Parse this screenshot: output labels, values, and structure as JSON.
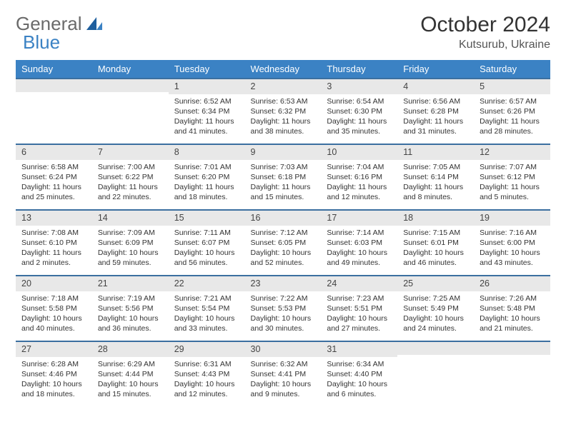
{
  "brand": {
    "general": "General",
    "blue": "Blue"
  },
  "title": "October 2024",
  "location": "Kutsurub, Ukraine",
  "styling": {
    "header_bg": "#3b82c4",
    "header_text": "#ffffff",
    "daynum_bg": "#e8e8e8",
    "daynum_border": "#3b6fa0",
    "body_text": "#333333",
    "page_bg": "#ffffff",
    "title_fontsize": 30,
    "location_fontsize": 16,
    "dayheader_fontsize": 13,
    "cell_fontsize": 10.5
  },
  "day_headers": [
    "Sunday",
    "Monday",
    "Tuesday",
    "Wednesday",
    "Thursday",
    "Friday",
    "Saturday"
  ],
  "weeks": [
    [
      null,
      null,
      {
        "n": "1",
        "sr": "Sunrise: 6:52 AM",
        "ss": "Sunset: 6:34 PM",
        "dl": "Daylight: 11 hours and 41 minutes."
      },
      {
        "n": "2",
        "sr": "Sunrise: 6:53 AM",
        "ss": "Sunset: 6:32 PM",
        "dl": "Daylight: 11 hours and 38 minutes."
      },
      {
        "n": "3",
        "sr": "Sunrise: 6:54 AM",
        "ss": "Sunset: 6:30 PM",
        "dl": "Daylight: 11 hours and 35 minutes."
      },
      {
        "n": "4",
        "sr": "Sunrise: 6:56 AM",
        "ss": "Sunset: 6:28 PM",
        "dl": "Daylight: 11 hours and 31 minutes."
      },
      {
        "n": "5",
        "sr": "Sunrise: 6:57 AM",
        "ss": "Sunset: 6:26 PM",
        "dl": "Daylight: 11 hours and 28 minutes."
      }
    ],
    [
      {
        "n": "6",
        "sr": "Sunrise: 6:58 AM",
        "ss": "Sunset: 6:24 PM",
        "dl": "Daylight: 11 hours and 25 minutes."
      },
      {
        "n": "7",
        "sr": "Sunrise: 7:00 AM",
        "ss": "Sunset: 6:22 PM",
        "dl": "Daylight: 11 hours and 22 minutes."
      },
      {
        "n": "8",
        "sr": "Sunrise: 7:01 AM",
        "ss": "Sunset: 6:20 PM",
        "dl": "Daylight: 11 hours and 18 minutes."
      },
      {
        "n": "9",
        "sr": "Sunrise: 7:03 AM",
        "ss": "Sunset: 6:18 PM",
        "dl": "Daylight: 11 hours and 15 minutes."
      },
      {
        "n": "10",
        "sr": "Sunrise: 7:04 AM",
        "ss": "Sunset: 6:16 PM",
        "dl": "Daylight: 11 hours and 12 minutes."
      },
      {
        "n": "11",
        "sr": "Sunrise: 7:05 AM",
        "ss": "Sunset: 6:14 PM",
        "dl": "Daylight: 11 hours and 8 minutes."
      },
      {
        "n": "12",
        "sr": "Sunrise: 7:07 AM",
        "ss": "Sunset: 6:12 PM",
        "dl": "Daylight: 11 hours and 5 minutes."
      }
    ],
    [
      {
        "n": "13",
        "sr": "Sunrise: 7:08 AM",
        "ss": "Sunset: 6:10 PM",
        "dl": "Daylight: 11 hours and 2 minutes."
      },
      {
        "n": "14",
        "sr": "Sunrise: 7:09 AM",
        "ss": "Sunset: 6:09 PM",
        "dl": "Daylight: 10 hours and 59 minutes."
      },
      {
        "n": "15",
        "sr": "Sunrise: 7:11 AM",
        "ss": "Sunset: 6:07 PM",
        "dl": "Daylight: 10 hours and 56 minutes."
      },
      {
        "n": "16",
        "sr": "Sunrise: 7:12 AM",
        "ss": "Sunset: 6:05 PM",
        "dl": "Daylight: 10 hours and 52 minutes."
      },
      {
        "n": "17",
        "sr": "Sunrise: 7:14 AM",
        "ss": "Sunset: 6:03 PM",
        "dl": "Daylight: 10 hours and 49 minutes."
      },
      {
        "n": "18",
        "sr": "Sunrise: 7:15 AM",
        "ss": "Sunset: 6:01 PM",
        "dl": "Daylight: 10 hours and 46 minutes."
      },
      {
        "n": "19",
        "sr": "Sunrise: 7:16 AM",
        "ss": "Sunset: 6:00 PM",
        "dl": "Daylight: 10 hours and 43 minutes."
      }
    ],
    [
      {
        "n": "20",
        "sr": "Sunrise: 7:18 AM",
        "ss": "Sunset: 5:58 PM",
        "dl": "Daylight: 10 hours and 40 minutes."
      },
      {
        "n": "21",
        "sr": "Sunrise: 7:19 AM",
        "ss": "Sunset: 5:56 PM",
        "dl": "Daylight: 10 hours and 36 minutes."
      },
      {
        "n": "22",
        "sr": "Sunrise: 7:21 AM",
        "ss": "Sunset: 5:54 PM",
        "dl": "Daylight: 10 hours and 33 minutes."
      },
      {
        "n": "23",
        "sr": "Sunrise: 7:22 AM",
        "ss": "Sunset: 5:53 PM",
        "dl": "Daylight: 10 hours and 30 minutes."
      },
      {
        "n": "24",
        "sr": "Sunrise: 7:23 AM",
        "ss": "Sunset: 5:51 PM",
        "dl": "Daylight: 10 hours and 27 minutes."
      },
      {
        "n": "25",
        "sr": "Sunrise: 7:25 AM",
        "ss": "Sunset: 5:49 PM",
        "dl": "Daylight: 10 hours and 24 minutes."
      },
      {
        "n": "26",
        "sr": "Sunrise: 7:26 AM",
        "ss": "Sunset: 5:48 PM",
        "dl": "Daylight: 10 hours and 21 minutes."
      }
    ],
    [
      {
        "n": "27",
        "sr": "Sunrise: 6:28 AM",
        "ss": "Sunset: 4:46 PM",
        "dl": "Daylight: 10 hours and 18 minutes."
      },
      {
        "n": "28",
        "sr": "Sunrise: 6:29 AM",
        "ss": "Sunset: 4:44 PM",
        "dl": "Daylight: 10 hours and 15 minutes."
      },
      {
        "n": "29",
        "sr": "Sunrise: 6:31 AM",
        "ss": "Sunset: 4:43 PM",
        "dl": "Daylight: 10 hours and 12 minutes."
      },
      {
        "n": "30",
        "sr": "Sunrise: 6:32 AM",
        "ss": "Sunset: 4:41 PM",
        "dl": "Daylight: 10 hours and 9 minutes."
      },
      {
        "n": "31",
        "sr": "Sunrise: 6:34 AM",
        "ss": "Sunset: 4:40 PM",
        "dl": "Daylight: 10 hours and 6 minutes."
      },
      null,
      null
    ]
  ]
}
